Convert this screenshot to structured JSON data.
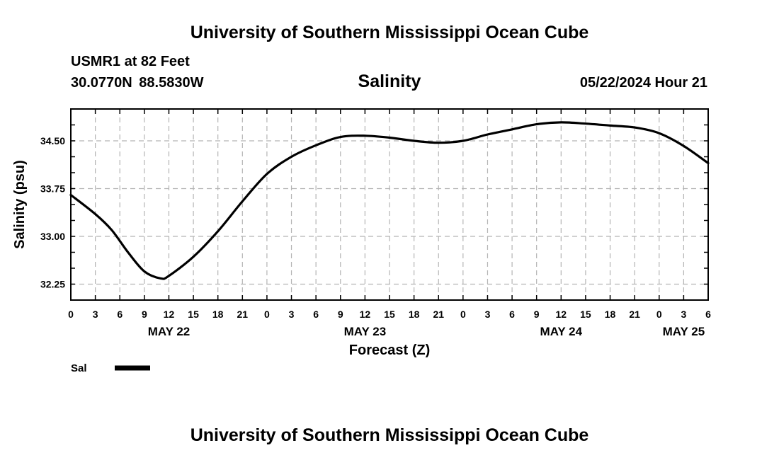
{
  "header": {
    "title": "University of Southern Mississippi Ocean Cube",
    "station": "USMR1 at 82 Feet",
    "coordinates": "30.0770N  88.5830W",
    "chart_title": "Salinity",
    "forecast_time": "05/22/2024 Hour 21"
  },
  "footer": {
    "title": "University of Southern Mississippi Ocean Cube"
  },
  "chart_data": {
    "type": "line",
    "title": "Salinity",
    "xlabel": "Forecast (Z)",
    "ylabel": "Salinity (psu)",
    "xlim": [
      0,
      78
    ],
    "ylim": [
      32.0,
      35.0
    ],
    "x_tick_step_hours": 3,
    "x_tick_labels": [
      "0",
      "3",
      "6",
      "9",
      "12",
      "15",
      "18",
      "21",
      "0",
      "3",
      "6",
      "9",
      "12",
      "15",
      "18",
      "21",
      "0",
      "3",
      "6",
      "9",
      "12",
      "15",
      "18",
      "21",
      "0",
      "3",
      "6"
    ],
    "y_ticks": [
      32.25,
      33.0,
      33.75,
      34.5
    ],
    "y_tick_labels": [
      "32.25",
      "33.00",
      "33.75",
      "34.50"
    ],
    "day_labels": [
      {
        "hour": 12,
        "label": "MAY 22"
      },
      {
        "hour": 36,
        "label": "MAY 23"
      },
      {
        "hour": 60,
        "label": "MAY 24"
      },
      {
        "hour": 75,
        "label": "MAY 25"
      }
    ],
    "grid": true,
    "legend_position": "bottom-left",
    "series": [
      {
        "name": "Sal",
        "color": "#000000",
        "x": [
          0,
          3,
          5,
          7,
          9,
          11,
          12,
          15,
          18,
          21,
          24,
          27,
          30,
          33,
          36,
          39,
          42,
          45,
          48,
          51,
          54,
          57,
          60,
          63,
          66,
          69,
          72,
          75,
          78
        ],
        "values": [
          33.65,
          33.35,
          33.1,
          32.75,
          32.45,
          32.34,
          32.38,
          32.68,
          33.08,
          33.55,
          33.98,
          34.25,
          34.43,
          34.56,
          34.58,
          34.55,
          34.5,
          34.47,
          34.5,
          34.6,
          34.68,
          34.76,
          34.79,
          34.77,
          34.74,
          34.71,
          34.62,
          34.42,
          34.15
        ]
      }
    ]
  }
}
